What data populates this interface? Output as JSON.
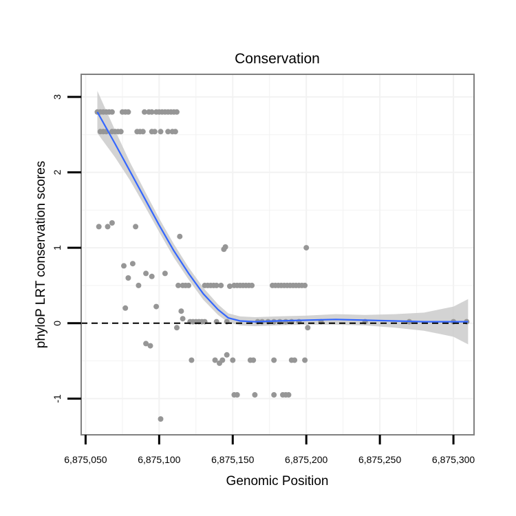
{
  "chart_data": {
    "type": "scatter",
    "title": "Conservation",
    "xlabel": "Genomic Position",
    "ylabel": "phyloP LRT conservation scores",
    "xlim": [
      6875047,
      6875314
    ],
    "ylim": [
      -1.48,
      3.3
    ],
    "x_ticks": [
      6875050,
      6875100,
      6875150,
      6875200,
      6875250,
      6875300
    ],
    "x_tick_labels": [
      "6,875,050",
      "6,875,100",
      "6,875,150",
      "6,875,200",
      "6,875,250",
      "6,875,300"
    ],
    "y_ticks": [
      -1,
      0,
      1,
      2,
      3
    ],
    "y_tick_labels": [
      "-1",
      "0",
      "1",
      "2",
      "3"
    ],
    "reference_line": {
      "y": 0,
      "style": "dashed",
      "color": "#000000"
    },
    "colors": {
      "points": "#969696",
      "smooth_line": "#3366ff",
      "ribbon": "#c8c8c8",
      "panel_border": "#7f7f7f",
      "grid": "#f2f2f2"
    },
    "series": [
      {
        "name": "scores",
        "points": [
          [
            6875058,
            2.8
          ],
          [
            6875060,
            2.8
          ],
          [
            6875062,
            2.8
          ],
          [
            6875064,
            2.8
          ],
          [
            6875066,
            2.8
          ],
          [
            6875068,
            2.8
          ],
          [
            6875075,
            2.8
          ],
          [
            6875077,
            2.8
          ],
          [
            6875079,
            2.8
          ],
          [
            6875090,
            2.8
          ],
          [
            6875093,
            2.8
          ],
          [
            6875095,
            2.8
          ],
          [
            6875098,
            2.8
          ],
          [
            6875100,
            2.8
          ],
          [
            6875102,
            2.8
          ],
          [
            6875104,
            2.8
          ],
          [
            6875106,
            2.8
          ],
          [
            6875108,
            2.8
          ],
          [
            6875110,
            2.8
          ],
          [
            6875112,
            2.8
          ],
          [
            6875060,
            2.54
          ],
          [
            6875062,
            2.54
          ],
          [
            6875064,
            2.54
          ],
          [
            6875068,
            2.54
          ],
          [
            6875070,
            2.54
          ],
          [
            6875072,
            2.54
          ],
          [
            6875074,
            2.54
          ],
          [
            6875085,
            2.54
          ],
          [
            6875087,
            2.54
          ],
          [
            6875089,
            2.54
          ],
          [
            6875095,
            2.54
          ],
          [
            6875097,
            2.54
          ],
          [
            6875101,
            2.54
          ],
          [
            6875106,
            2.54
          ],
          [
            6875109,
            2.54
          ],
          [
            6875111,
            2.54
          ],
          [
            6875059,
            1.28
          ],
          [
            6875065,
            1.28
          ],
          [
            6875068,
            1.33
          ],
          [
            6875084,
            1.28
          ],
          [
            6875114,
            1.15
          ],
          [
            6875144,
            0.98
          ],
          [
            6875145,
            1.01
          ],
          [
            6875200,
            1.0
          ],
          [
            6875076,
            0.76
          ],
          [
            6875082,
            0.79
          ],
          [
            6875079,
            0.6
          ],
          [
            6875091,
            0.66
          ],
          [
            6875095,
            0.62
          ],
          [
            6875086,
            0.5
          ],
          [
            6875104,
            0.66
          ],
          [
            6875113,
            0.5
          ],
          [
            6875116,
            0.5
          ],
          [
            6875118,
            0.5
          ],
          [
            6875120,
            0.5
          ],
          [
            6875131,
            0.5
          ],
          [
            6875133,
            0.5
          ],
          [
            6875135,
            0.5
          ],
          [
            6875137,
            0.5
          ],
          [
            6875139,
            0.5
          ],
          [
            6875142,
            0.5
          ],
          [
            6875148,
            0.49
          ],
          [
            6875151,
            0.5
          ],
          [
            6875153,
            0.5
          ],
          [
            6875155,
            0.5
          ],
          [
            6875157,
            0.5
          ],
          [
            6875159,
            0.5
          ],
          [
            6875161,
            0.5
          ],
          [
            6875163,
            0.5
          ],
          [
            6875177,
            0.5
          ],
          [
            6875179,
            0.5
          ],
          [
            6875181,
            0.5
          ],
          [
            6875183,
            0.5
          ],
          [
            6875185,
            0.5
          ],
          [
            6875187,
            0.5
          ],
          [
            6875189,
            0.5
          ],
          [
            6875191,
            0.5
          ],
          [
            6875193,
            0.5
          ],
          [
            6875195,
            0.5
          ],
          [
            6875197,
            0.5
          ],
          [
            6875199,
            0.5
          ],
          [
            6875077,
            0.2
          ],
          [
            6875098,
            0.22
          ],
          [
            6875115,
            0.16
          ],
          [
            6875116,
            0.06
          ],
          [
            6875112,
            -0.06
          ],
          [
            6875121,
            0.02
          ],
          [
            6875123,
            0.02
          ],
          [
            6875125,
            0.02
          ],
          [
            6875127,
            0.02
          ],
          [
            6875129,
            0.02
          ],
          [
            6875131,
            0.02
          ],
          [
            6875139,
            0.02
          ],
          [
            6875146,
            0.02
          ],
          [
            6875167,
            0.02
          ],
          [
            6875170,
            0.02
          ],
          [
            6875174,
            0.02
          ],
          [
            6875178,
            0.02
          ],
          [
            6875182,
            0.02
          ],
          [
            6875186,
            0.02
          ],
          [
            6875190,
            0.02
          ],
          [
            6875195,
            0.02
          ],
          [
            6875210,
            0.02
          ],
          [
            6875240,
            0.02
          ],
          [
            6875270,
            0.02
          ],
          [
            6875300,
            0.02
          ],
          [
            6875309,
            0.02
          ],
          [
            6875201,
            -0.06
          ],
          [
            6875091,
            -0.27
          ],
          [
            6875094,
            -0.3
          ],
          [
            6875122,
            -0.49
          ],
          [
            6875138,
            -0.49
          ],
          [
            6875141,
            -0.53
          ],
          [
            6875143,
            -0.49
          ],
          [
            6875146,
            -0.42
          ],
          [
            6875150,
            -0.49
          ],
          [
            6875162,
            -0.49
          ],
          [
            6875164,
            -0.49
          ],
          [
            6875178,
            -0.49
          ],
          [
            6875190,
            -0.49
          ],
          [
            6875192,
            -0.49
          ],
          [
            6875199,
            -0.49
          ],
          [
            6875151,
            -0.95
          ],
          [
            6875153,
            -0.95
          ],
          [
            6875165,
            -0.95
          ],
          [
            6875178,
            -0.95
          ],
          [
            6875184,
            -0.95
          ],
          [
            6875186,
            -0.95
          ],
          [
            6875188,
            -0.95
          ],
          [
            6875101,
            -1.27
          ]
        ]
      },
      {
        "name": "smooth",
        "points": [
          [
            6875058,
            2.8
          ],
          [
            6875070,
            2.38
          ],
          [
            6875080,
            2.02
          ],
          [
            6875090,
            1.66
          ],
          [
            6875100,
            1.3
          ],
          [
            6875110,
            0.96
          ],
          [
            6875120,
            0.66
          ],
          [
            6875130,
            0.39
          ],
          [
            6875140,
            0.18
          ],
          [
            6875147,
            0.07
          ],
          [
            6875155,
            0.03
          ],
          [
            6875165,
            0.02
          ],
          [
            6875180,
            0.03
          ],
          [
            6875200,
            0.04
          ],
          [
            6875220,
            0.05
          ],
          [
            6875240,
            0.04
          ],
          [
            6875260,
            0.03
          ],
          [
            6875280,
            0.02
          ],
          [
            6875300,
            0.02
          ],
          [
            6875310,
            0.02
          ]
        ],
        "ribbon_halfwidth": [
          0.28,
          0.18,
          0.12,
          0.1,
          0.09,
          0.09,
          0.08,
          0.08,
          0.07,
          0.06,
          0.06,
          0.06,
          0.06,
          0.06,
          0.07,
          0.07,
          0.09,
          0.12,
          0.2,
          0.3
        ]
      }
    ]
  }
}
